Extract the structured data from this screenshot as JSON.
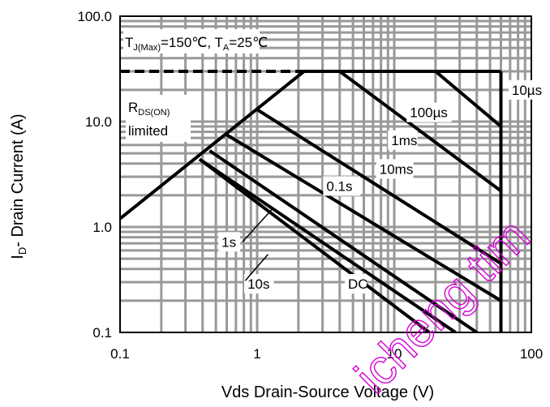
{
  "chart_data": {
    "type": "line",
    "title": "",
    "xlabel": "Vds Drain-Source Voltage (V)",
    "ylabel_main": "I",
    "ylabel_sub": "D",
    "ylabel_rest": "- Drain Current (A)",
    "x_scale": "log",
    "y_scale": "log",
    "xlim": [
      0.1,
      100
    ],
    "ylim": [
      0.1,
      100
    ],
    "x_ticks": [
      0.1,
      1,
      10,
      100
    ],
    "x_tick_labels": [
      "0.1",
      "1",
      "10",
      "100"
    ],
    "y_ticks": [
      0.1,
      1,
      10,
      100
    ],
    "y_tick_labels": [
      "0.1",
      "1.0",
      "10.0",
      "100.0"
    ],
    "grid": true,
    "conditions": {
      "tj_main": "T",
      "tj_sub": "J(Max)",
      "tj_rest": "=150℃, T",
      "ta_sub": "A",
      "ta_rest": "=25℃"
    },
    "rds_label": {
      "main": "R",
      "sub": "DS(ON)",
      "line2": "limited"
    },
    "current_limit": {
      "y": 30,
      "x": [
        0.1,
        2.2
      ]
    },
    "voltage_limit": {
      "x": 60,
      "y": [
        0.1,
        30
      ]
    },
    "rds_on_limit": {
      "x": [
        0.1,
        2.2
      ],
      "y": [
        1.2,
        30
      ]
    },
    "series": [
      {
        "name": "10µs",
        "x": [
          2.2,
          60
        ],
        "y": [
          30,
          30
        ]
      },
      {
        "name": "100µs",
        "x": [
          20,
          60
        ],
        "y": [
          30,
          9
        ]
      },
      {
        "name": "1ms",
        "x": [
          4.0,
          60
        ],
        "y": [
          30,
          2.2
        ]
      },
      {
        "name": "10ms",
        "x": [
          1.0,
          60
        ],
        "y": [
          13,
          0.45
        ]
      },
      {
        "name": "0.1s",
        "x": [
          0.6,
          60
        ],
        "y": [
          7.5,
          0.2
        ]
      },
      {
        "name": "1s",
        "x": [
          0.45,
          40
        ],
        "y": [
          5.3,
          0.1
        ]
      },
      {
        "name": "10s",
        "x": [
          0.38,
          28
        ],
        "y": [
          4.4,
          0.1
        ]
      },
      {
        "name": "DC",
        "x": [
          0.38,
          18
        ],
        "y": [
          4.4,
          0.1
        ]
      }
    ],
    "annotations": [
      "10µs",
      "100µs",
      "1ms",
      "10ms",
      "0.1s",
      "1s",
      "10s",
      "DC"
    ]
  },
  "watermark": "icheng tim"
}
